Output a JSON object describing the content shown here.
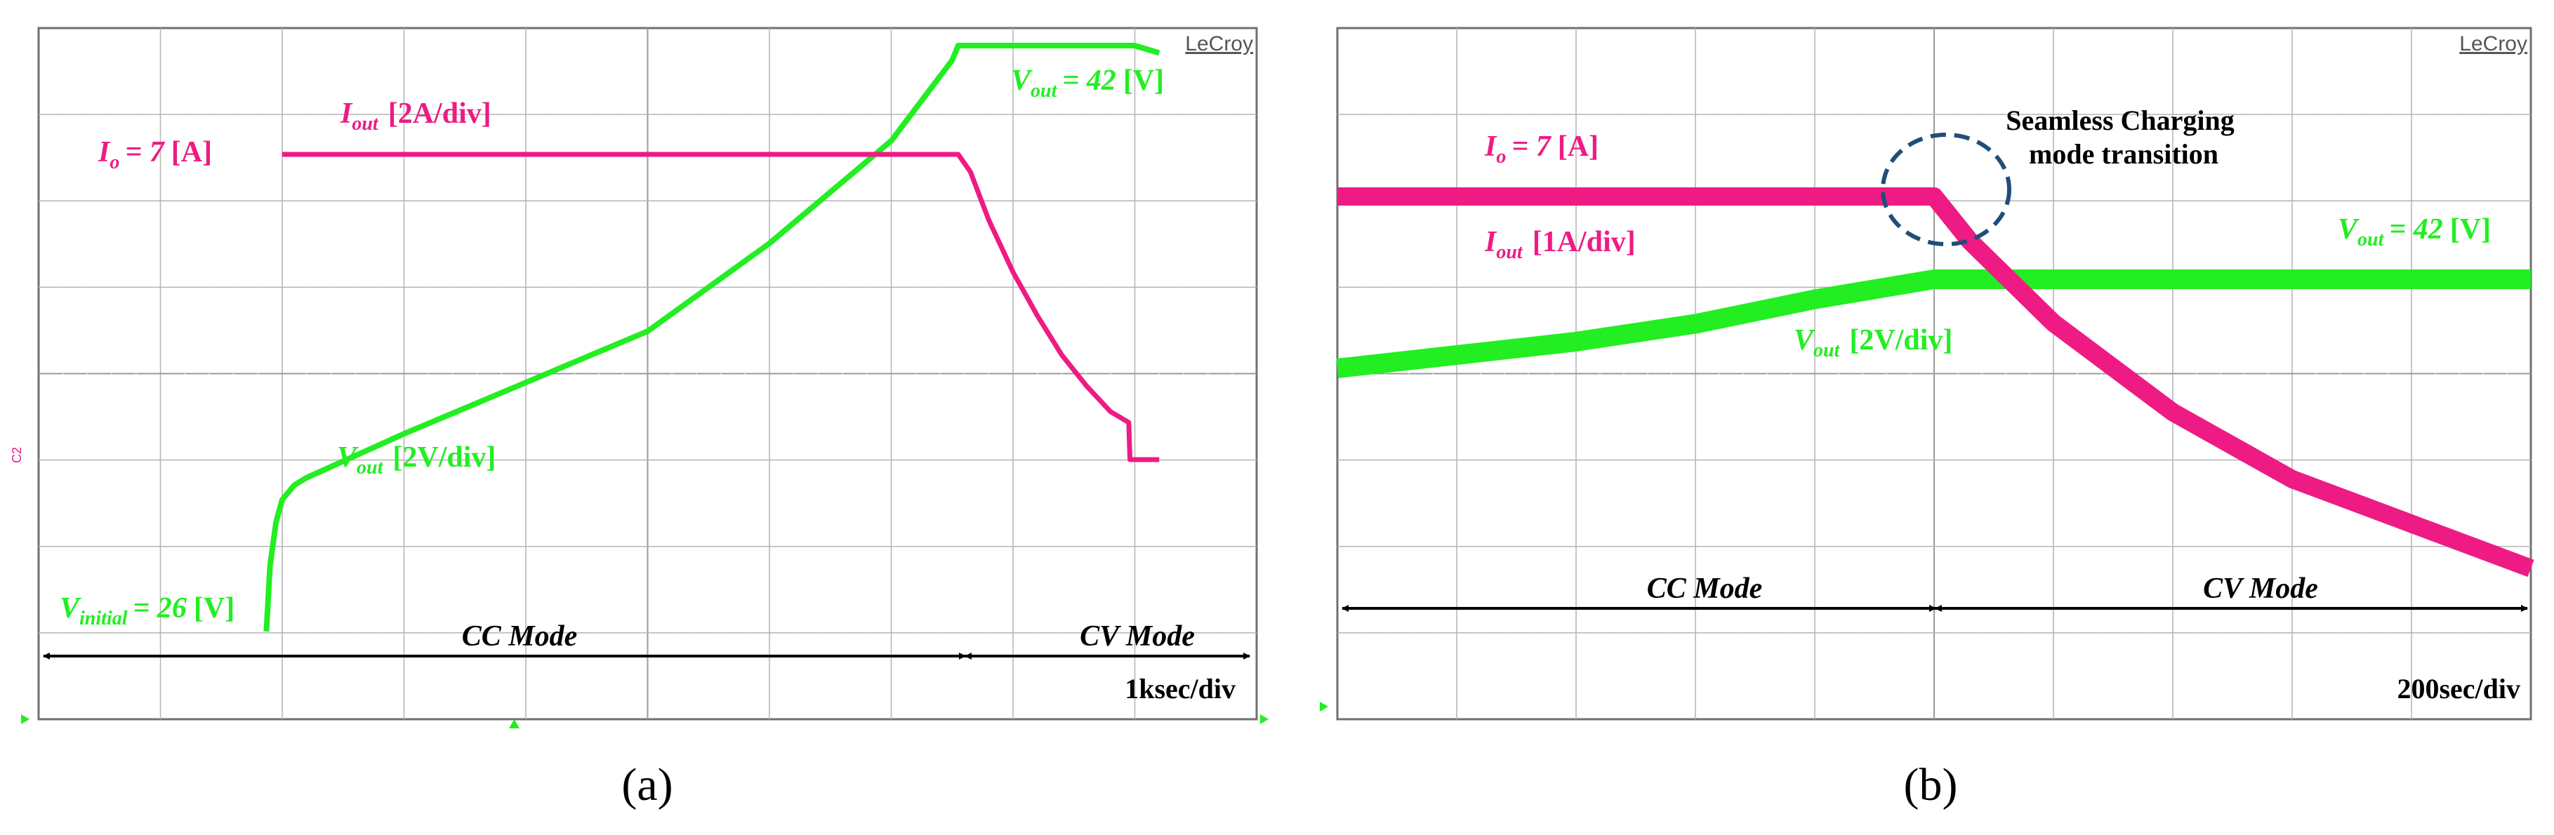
{
  "colors": {
    "current": "#ee1b84",
    "voltage": "#22ee22",
    "annotation": "#000000",
    "circle": "#1f4e79",
    "grid": "#b4b4b4"
  },
  "chart_data": [
    {
      "type": "line",
      "panel": "(a)",
      "brand": "LeCroy",
      "timebase": "1ksec/div",
      "divisions": {
        "x": 10,
        "y": 8
      },
      "current_label": {
        "symbol": "I",
        "sub": "out",
        "unit": "[2A/div]"
      },
      "current_value_label": {
        "symbol": "I",
        "sub": "o",
        "value": "= 7",
        "unit": "[A]"
      },
      "voltage_label": {
        "symbol": "V",
        "sub": "out",
        "unit": "[2V/div]"
      },
      "voltage_final_label": {
        "symbol": "V",
        "sub": "out",
        "value": "= 42",
        "unit": "[V]"
      },
      "voltage_initial_label": {
        "symbol": "V",
        "sub": "initial",
        "value": "= 26",
        "unit": "[V]"
      },
      "channel_marker": "C2",
      "modes": [
        {
          "name": "CC Mode",
          "x_range_div": [
            0,
            7.55
          ]
        },
        {
          "name": "CV Mode",
          "x_range_div": [
            7.55,
            10
          ]
        }
      ],
      "series": [
        {
          "name": "Iout",
          "unit": "A",
          "x_div": [
            2,
            2.5,
            3,
            4,
            5,
            6,
            7,
            7.55,
            7.65,
            7.8,
            8,
            8.2,
            8.4,
            8.6,
            8.8,
            8.95,
            8.96,
            9.2
          ],
          "y": [
            7,
            7,
            7,
            7,
            7,
            7,
            7,
            7,
            6.6,
            5.5,
            4.3,
            3.3,
            2.4,
            1.7,
            1.1,
            0.85,
            0,
            0
          ]
        },
        {
          "name": "Vout",
          "unit": "V",
          "x_div": [
            1.87,
            1.9,
            1.95,
            2.0,
            2.1,
            2.2,
            3,
            4,
            5,
            6,
            7,
            7.5,
            7.55,
            8,
            8.5,
            9.0,
            9.2
          ],
          "y": [
            26,
            27.8,
            29,
            29.6,
            30,
            30.2,
            31.4,
            32.8,
            34.2,
            36.6,
            39.4,
            41.6,
            42,
            42,
            42,
            42,
            41.8
          ]
        }
      ]
    },
    {
      "type": "line",
      "panel": "(b)",
      "brand": "LeCroy",
      "timebase": "200sec/div",
      "divisions": {
        "x": 10,
        "y": 8
      },
      "annotation": [
        "Seamless Charging",
        "mode transition"
      ],
      "current_value_label": {
        "symbol": "I",
        "sub": "o",
        "value": "= 7",
        "unit": "[A]"
      },
      "current_label": {
        "symbol": "I",
        "sub": "out",
        "unit": "[1A/div]"
      },
      "voltage_label": {
        "symbol": "V",
        "sub": "out",
        "unit": "[2V/div]"
      },
      "voltage_final_label": {
        "symbol": "V",
        "sub": "out",
        "value": "= 42",
        "unit": "[V]"
      },
      "modes": [
        {
          "name": "CC Mode",
          "x_range_div": [
            0,
            5
          ]
        },
        {
          "name": "CV Mode",
          "x_range_div": [
            5,
            10
          ]
        }
      ],
      "series": [
        {
          "name": "Iout",
          "unit": "A",
          "x_div": [
            0,
            1,
            2,
            3,
            4,
            5,
            5.3,
            6,
            7,
            8,
            9,
            10
          ],
          "y": [
            7,
            7,
            7,
            7,
            7,
            7,
            6.4,
            5.3,
            4.1,
            3.2,
            2.6,
            2.0
          ]
        },
        {
          "name": "Vout",
          "unit": "V",
          "x_div": [
            0,
            1,
            2,
            3,
            4,
            5,
            6,
            7,
            8,
            9,
            10
          ],
          "y": [
            38,
            38.6,
            39.2,
            40,
            41.1,
            42,
            42,
            42,
            42,
            42,
            42
          ]
        }
      ]
    }
  ],
  "captions": [
    "(a)",
    "(b)"
  ]
}
